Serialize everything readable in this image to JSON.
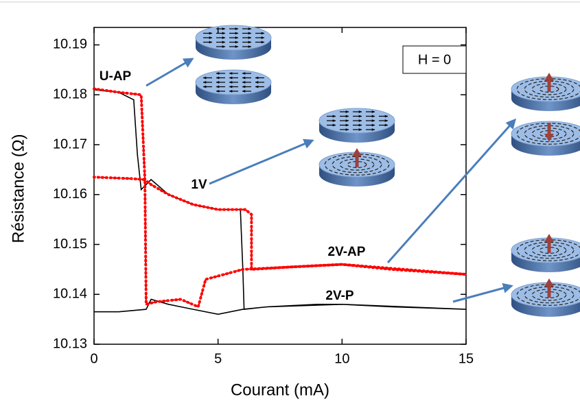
{
  "chart_data": {
    "type": "line",
    "xlabel": "Courant (mA)",
    "ylabel": "Résistance (Ω)",
    "xlim": [
      0,
      15
    ],
    "ylim": [
      10.13,
      10.1935
    ],
    "xticks": [
      0,
      5,
      10,
      15
    ],
    "yticks": [
      10.13,
      10.14,
      10.15,
      10.16,
      10.17,
      10.18,
      10.19
    ],
    "grid": false,
    "series": [
      {
        "color": "#000000",
        "style": "solid",
        "x": [
          0,
          1.0,
          1.6,
          1.75,
          1.9,
          2.1,
          2.3,
          3,
          4,
          5,
          5.9,
          6.0,
          6.05,
          7,
          9,
          10,
          12,
          15,
          10,
          7,
          6,
          5,
          4,
          3,
          2.3,
          2.1,
          1,
          0
        ],
        "values": [
          10.181,
          10.1805,
          10.179,
          10.168,
          10.161,
          10.162,
          10.163,
          10.16,
          10.158,
          10.157,
          10.157,
          10.145,
          10.137,
          10.1375,
          10.138,
          10.138,
          10.1375,
          10.137,
          10.138,
          10.1375,
          10.137,
          10.136,
          10.137,
          10.138,
          10.139,
          10.137,
          10.1365,
          10.1365
        ]
      },
      {
        "color": "#ff0000",
        "style": "dashed",
        "x": [
          0,
          1.0,
          1.9,
          2.05,
          2.3,
          3,
          4,
          5,
          6.1,
          6.35,
          6.35,
          8,
          10,
          12,
          15,
          10,
          6,
          4.5,
          4.2,
          3.5,
          2.5,
          2.1,
          2.05,
          1.5,
          0
        ],
        "values": [
          10.1812,
          10.1805,
          10.18,
          10.163,
          10.162,
          10.16,
          10.158,
          10.157,
          10.157,
          10.156,
          10.145,
          10.1455,
          10.146,
          10.145,
          10.144,
          10.146,
          10.145,
          10.143,
          10.1375,
          10.139,
          10.1385,
          10.138,
          10.163,
          10.1632,
          10.1635
        ]
      }
    ],
    "annotations": [
      "U-AP",
      "1V",
      "2V-AP",
      "2V-P"
    ],
    "inset_label": "H = 0"
  }
}
